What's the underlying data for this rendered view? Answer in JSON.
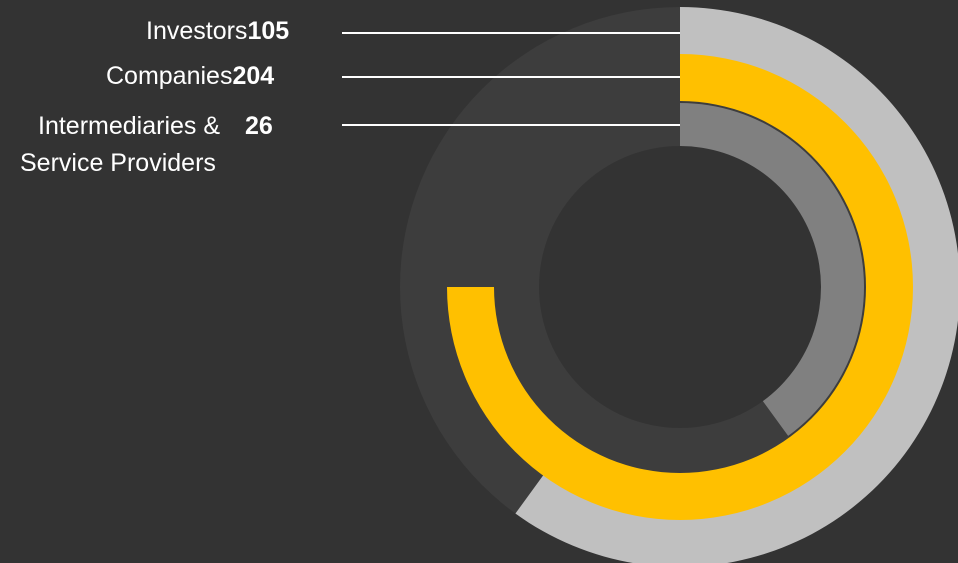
{
  "colors": {
    "background": "#333333",
    "track": "#3d3d3d",
    "investors": "#c0c0c0",
    "companies": "#ffc000",
    "intermediaries": "#808080",
    "leader_line": "#ffffff"
  },
  "chart_data": {
    "type": "radial-bar",
    "series": [
      {
        "name": "Investors",
        "value": 105,
        "fraction_of_circle": 0.6
      },
      {
        "name": "Companies",
        "value": 204,
        "fraction_of_circle": 0.75
      },
      {
        "name": "Intermediaries & Service Providers",
        "value": 26,
        "fraction_of_circle": 0.4
      }
    ]
  },
  "legend": [
    {
      "label": "Investors",
      "value": "105"
    },
    {
      "label": "Companies",
      "value": "204"
    },
    {
      "label_line1": "Intermediaries &",
      "label_line2": "Service Providers",
      "value": "26"
    }
  ]
}
